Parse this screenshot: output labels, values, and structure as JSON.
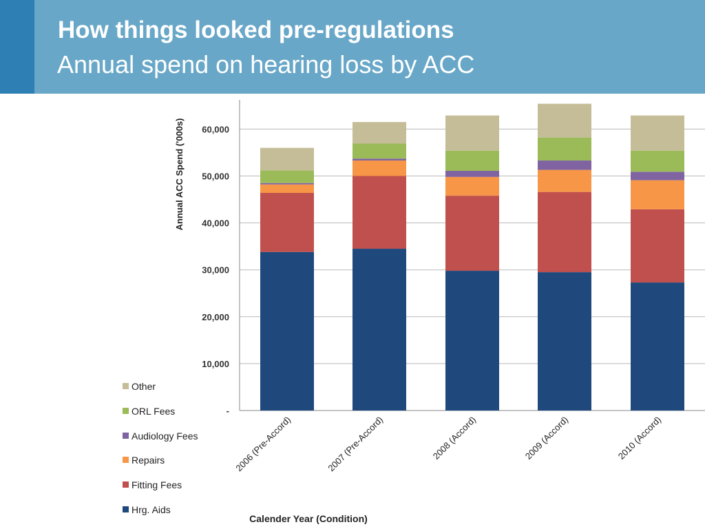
{
  "slide": {
    "title": "How things looked pre-regulations",
    "subtitle": "Annual spend on hearing loss by ACC"
  },
  "chart_data": {
    "type": "bar",
    "stacked": true,
    "title": "Annual spend on hearing loss by ACC",
    "xlabel": "Calender Year (Condition)",
    "ylabel": "Annual ACC Spend ('000s)",
    "ylim": [
      0,
      66000
    ],
    "yticks": [
      0,
      10000,
      20000,
      30000,
      40000,
      50000,
      60000
    ],
    "ytick_labels": [
      "-",
      "10,000",
      "20,000",
      "30,000",
      "40,000",
      "50,000",
      "60,000"
    ],
    "grid": true,
    "legend_position": "left",
    "categories": [
      "2006 (Pre-Accord)",
      "2007 (Pre-Accord)",
      "2008 (Accord)",
      "2009 (Accord)",
      "2010 (Accord)"
    ],
    "series": [
      {
        "name": "Hrg. Aids",
        "color": "#1f497d",
        "values": [
          33800,
          34500,
          29800,
          29500,
          27300
        ]
      },
      {
        "name": "Fitting Fees",
        "color": "#c0504d",
        "values": [
          12600,
          15500,
          16000,
          17100,
          15600
        ]
      },
      {
        "name": "Repairs",
        "color": "#f79646",
        "values": [
          1800,
          3300,
          4000,
          4700,
          6200
        ]
      },
      {
        "name": "Audiology Fees",
        "color": "#8064a2",
        "values": [
          300,
          400,
          1300,
          2000,
          1800
        ]
      },
      {
        "name": "ORL Fees",
        "color": "#9bbb59",
        "values": [
          2700,
          3200,
          4300,
          4900,
          4500
        ]
      },
      {
        "name": "Other",
        "color": "#c4bd97",
        "values": [
          4800,
          4600,
          7500,
          7200,
          7500
        ]
      }
    ]
  }
}
